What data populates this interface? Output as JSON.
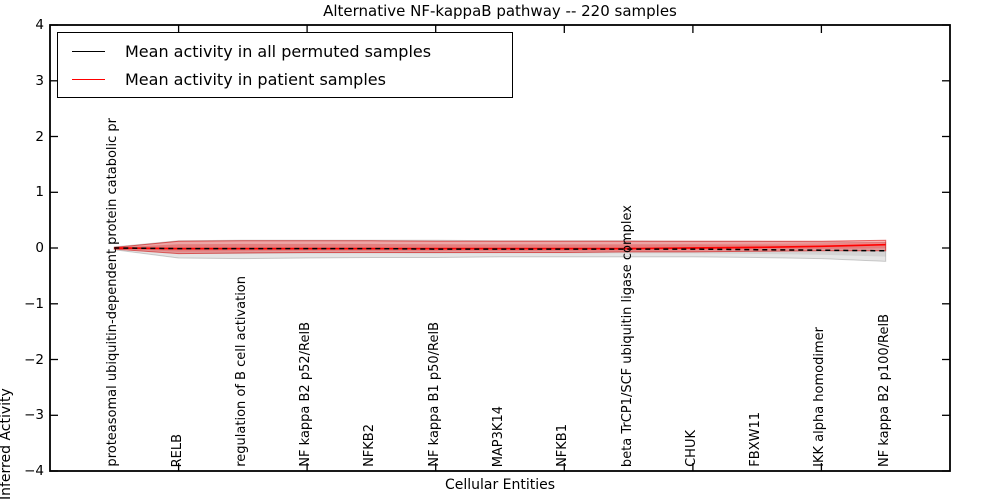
{
  "title": "Alternative NF-kappaB pathway -- 220 samples",
  "axes": {
    "ylabel": "Inferred Activity",
    "xlabel": "Cellular Entities",
    "yticks": [
      {
        "label": "4",
        "value": 4
      },
      {
        "label": "3",
        "value": 3
      },
      {
        "label": "2",
        "value": 2
      },
      {
        "label": "1",
        "value": 1
      },
      {
        "label": "0",
        "value": 0
      },
      {
        "label": "−1",
        "value": -1
      },
      {
        "label": "−2",
        "value": -2
      },
      {
        "label": "−3",
        "value": -3
      },
      {
        "label": "−4",
        "value": -4
      }
    ]
  },
  "legend": {
    "entries": [
      {
        "label": "Mean activity in all permuted samples",
        "color": "#000000"
      },
      {
        "label": "Mean activity in patient samples",
        "color": "#ff0000"
      }
    ]
  },
  "colors": {
    "permuted_line": "#000000",
    "patient_line": "#ff0000",
    "permuted_band": "rgba(0,0,0,0.10)",
    "permuted_band_edge": "rgba(0,0,0,0.18)",
    "patient_band": "rgba(255,0,0,0.28)",
    "patient_band_edge": "rgba(210,0,0,0.55)",
    "frame": "#000000"
  },
  "chart_data": {
    "type": "line",
    "title": "Alternative NF-kappaB pathway -- 220 samples",
    "xlabel": "Cellular Entities",
    "ylabel": "Inferred Activity",
    "ylim": [
      -4,
      4
    ],
    "xlim": [
      0,
      14
    ],
    "xtick_positions": [
      2,
      4,
      6,
      8,
      10,
      12
    ],
    "grid": false,
    "legend_position": "upper left",
    "categories": [
      "proteasomal ubiquitin-dependent protein catabolic pr",
      "RELB",
      "regulation of B cell activation",
      "NF kappa B2 p52/RelB",
      "NFKB2",
      "NF kappa B1 p50/RelB",
      "MAP3K14",
      "NFKB1",
      "beta TrCP1/SCF ubiquitin ligase complex",
      "CHUK",
      "FBXW11",
      "IKK alpha homodimer",
      "NF kappa B2 p100/RelB"
    ],
    "series": [
      {
        "name": "Mean activity in all permuted samples",
        "style": "dashed-black",
        "values": [
          0.0,
          -0.01,
          -0.01,
          -0.01,
          -0.01,
          -0.02,
          -0.02,
          -0.02,
          -0.02,
          -0.02,
          -0.03,
          -0.04,
          -0.05
        ],
        "band_upper": [
          0.02,
          0.13,
          0.14,
          0.14,
          0.14,
          0.14,
          0.13,
          0.13,
          0.13,
          0.12,
          0.12,
          0.11,
          0.1
        ],
        "band_lower": [
          -0.03,
          -0.18,
          -0.19,
          -0.18,
          -0.17,
          -0.17,
          -0.16,
          -0.16,
          -0.16,
          -0.16,
          -0.17,
          -0.19,
          -0.24
        ]
      },
      {
        "name": "Mean activity in patient samples",
        "style": "solid-red",
        "values": [
          0.0,
          -0.01,
          -0.01,
          -0.01,
          -0.01,
          -0.01,
          -0.01,
          -0.01,
          -0.01,
          0.0,
          0.01,
          0.03,
          0.06
        ],
        "band_upper": [
          0.01,
          0.12,
          0.13,
          0.13,
          0.13,
          0.12,
          0.12,
          0.12,
          0.12,
          0.12,
          0.12,
          0.12,
          0.14
        ],
        "band_lower": [
          -0.02,
          -0.1,
          -0.09,
          -0.08,
          -0.08,
          -0.08,
          -0.08,
          -0.08,
          -0.07,
          -0.07,
          -0.06,
          -0.05,
          -0.05
        ]
      }
    ]
  }
}
